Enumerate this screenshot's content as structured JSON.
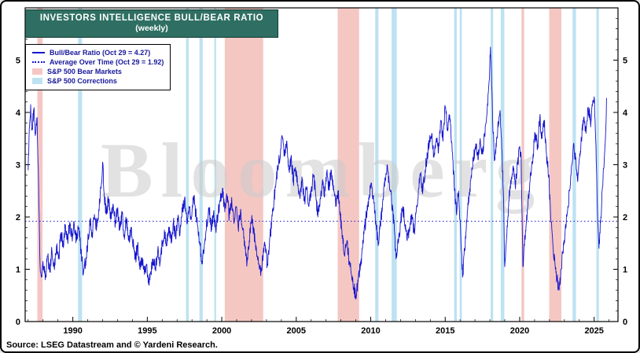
{
  "header": {
    "title": "INVESTORS INTELLIGENCE BULL/BEAR RATIO",
    "subtitle": "(weekly)"
  },
  "legend": {
    "items": [
      {
        "label": "Bull/Bear Ratio (Oct 29 = 4.27)",
        "swatch": "line"
      },
      {
        "label": "Average Over Time (Oct 29 = 1.92)",
        "swatch": "dotted-line"
      },
      {
        "label": "S&P 500 Bear Markets",
        "swatch": "bear-band"
      },
      {
        "label": "S&P 500 Corrections",
        "swatch": "correction-band"
      }
    ]
  },
  "watermark": "Bloomberg",
  "source": "Source: LSEG Datastream and © Yardeni Research.",
  "colors": {
    "line": "#1414cd",
    "bear": "#f4c7c3",
    "correction": "#bde2f2",
    "titlebg": "#2f6f63",
    "legend": "#18189c",
    "wm": "#cbcbcb"
  },
  "chart_data": {
    "type": "line",
    "title": "INVESTORS INTELLIGENCE BULL/BEAR RATIO (weekly)",
    "xlabel": "",
    "ylabel": "Bull/Bear Ratio",
    "x_range": [
      1986.8,
      2026.6
    ],
    "y_range": [
      0,
      6
    ],
    "x_ticks": [
      1990,
      1995,
      2000,
      2005,
      2010,
      2015,
      2020,
      2025
    ],
    "y_ticks": [
      0,
      1,
      2,
      3,
      4,
      5
    ],
    "grid": false,
    "legend_position": "top-left",
    "average_line": 1.92,
    "latest": {
      "as_of": "Oct 29",
      "ratio": 4.27,
      "average": 1.92
    },
    "texture_amplitude": 0.13,
    "bear_markets": [
      [
        1987.62,
        1987.97
      ],
      [
        2000.2,
        2002.78
      ],
      [
        2007.78,
        2009.22
      ],
      [
        2020.12,
        2020.3
      ],
      [
        2021.98,
        2022.8
      ]
    ],
    "corrections": [
      [
        1990.35,
        1990.62
      ],
      [
        1997.6,
        1997.78
      ],
      [
        1998.5,
        1998.72
      ],
      [
        1999.5,
        1999.62
      ],
      [
        2010.3,
        2010.52
      ],
      [
        2011.4,
        2011.75
      ],
      [
        2015.6,
        2015.78
      ],
      [
        2015.97,
        2016.12
      ],
      [
        2018.05,
        2018.22
      ],
      [
        2018.73,
        2018.97
      ],
      [
        2023.55,
        2023.78
      ],
      [
        2025.15,
        2025.32
      ]
    ],
    "series": [
      {
        "name": "Bull/Bear Ratio",
        "points": [
          [
            1987.0,
            2.9
          ],
          [
            1987.08,
            3.7
          ],
          [
            1987.17,
            4.15
          ],
          [
            1987.27,
            3.7
          ],
          [
            1987.38,
            4.05
          ],
          [
            1987.5,
            3.6
          ],
          [
            1987.6,
            3.9
          ],
          [
            1987.7,
            2.6
          ],
          [
            1987.8,
            1.1
          ],
          [
            1987.9,
            0.85
          ],
          [
            1988.0,
            1.15
          ],
          [
            1988.15,
            0.8
          ],
          [
            1988.3,
            1.25
          ],
          [
            1988.45,
            0.95
          ],
          [
            1988.6,
            1.35
          ],
          [
            1988.75,
            1.05
          ],
          [
            1988.9,
            1.45
          ],
          [
            1989.05,
            1.2
          ],
          [
            1989.2,
            1.7
          ],
          [
            1989.35,
            1.45
          ],
          [
            1989.5,
            1.85
          ],
          [
            1989.65,
            1.55
          ],
          [
            1989.8,
            1.9
          ],
          [
            1989.95,
            1.6
          ],
          [
            1990.1,
            1.85
          ],
          [
            1990.25,
            1.55
          ],
          [
            1990.4,
            1.8
          ],
          [
            1990.55,
            1.35
          ],
          [
            1990.7,
            0.9
          ],
          [
            1990.85,
            1.15
          ],
          [
            1991.0,
            1.5
          ],
          [
            1991.15,
            1.95
          ],
          [
            1991.3,
            1.65
          ],
          [
            1991.45,
            2.05
          ],
          [
            1991.6,
            1.8
          ],
          [
            1991.75,
            2.15
          ],
          [
            1991.9,
            2.55
          ],
          [
            1992.0,
            3.05
          ],
          [
            1992.1,
            2.45
          ],
          [
            1992.25,
            2.05
          ],
          [
            1992.4,
            2.35
          ],
          [
            1992.55,
            1.95
          ],
          [
            1992.7,
            2.25
          ],
          [
            1992.85,
            1.85
          ],
          [
            1993.0,
            2.15
          ],
          [
            1993.15,
            1.75
          ],
          [
            1993.3,
            2.05
          ],
          [
            1993.45,
            1.65
          ],
          [
            1993.6,
            1.95
          ],
          [
            1993.75,
            1.55
          ],
          [
            1993.9,
            1.8
          ],
          [
            1994.05,
            1.5
          ],
          [
            1994.2,
            1.2
          ],
          [
            1994.35,
            1.45
          ],
          [
            1994.5,
            1.0
          ],
          [
            1994.65,
            1.2
          ],
          [
            1994.8,
            0.9
          ],
          [
            1994.95,
            1.1
          ],
          [
            1995.1,
            0.7
          ],
          [
            1995.25,
            0.95
          ],
          [
            1995.4,
            1.2
          ],
          [
            1995.55,
            1.0
          ],
          [
            1995.7,
            1.35
          ],
          [
            1995.85,
            1.1
          ],
          [
            1996.0,
            1.5
          ],
          [
            1996.15,
            1.75
          ],
          [
            1996.3,
            1.45
          ],
          [
            1996.45,
            1.8
          ],
          [
            1996.6,
            1.5
          ],
          [
            1996.75,
            1.9
          ],
          [
            1996.9,
            1.6
          ],
          [
            1997.05,
            1.95
          ],
          [
            1997.2,
            1.7
          ],
          [
            1997.35,
            2.1
          ],
          [
            1997.5,
            2.35
          ],
          [
            1997.65,
            1.9
          ],
          [
            1997.8,
            2.2
          ],
          [
            1997.95,
            1.95
          ],
          [
            1998.1,
            2.4
          ],
          [
            1998.25,
            2.1
          ],
          [
            1998.4,
            1.8
          ],
          [
            1998.55,
            1.45
          ],
          [
            1998.7,
            1.1
          ],
          [
            1998.85,
            1.5
          ],
          [
            1999.0,
            1.9
          ],
          [
            1999.15,
            2.15
          ],
          [
            1999.3,
            1.8
          ],
          [
            1999.45,
            2.1
          ],
          [
            1999.6,
            1.75
          ],
          [
            1999.75,
            2.05
          ],
          [
            1999.9,
            2.3
          ],
          [
            2000.05,
            2.55
          ],
          [
            2000.2,
            2.1
          ],
          [
            2000.35,
            2.4
          ],
          [
            2000.5,
            2.0
          ],
          [
            2000.65,
            2.3
          ],
          [
            2000.8,
            1.95
          ],
          [
            2000.95,
            2.2
          ],
          [
            2001.1,
            1.8
          ],
          [
            2001.25,
            2.1
          ],
          [
            2001.4,
            1.75
          ],
          [
            2001.55,
            1.45
          ],
          [
            2001.7,
            1.15
          ],
          [
            2001.85,
            1.55
          ],
          [
            2002.0,
            1.95
          ],
          [
            2002.15,
            1.7
          ],
          [
            2002.3,
            1.45
          ],
          [
            2002.45,
            1.2
          ],
          [
            2002.6,
            0.95
          ],
          [
            2002.75,
            1.2
          ],
          [
            2002.9,
            1.45
          ],
          [
            2003.05,
            1.1
          ],
          [
            2003.2,
            1.5
          ],
          [
            2003.35,
            1.9
          ],
          [
            2003.5,
            2.3
          ],
          [
            2003.65,
            2.7
          ],
          [
            2003.8,
            3.0
          ],
          [
            2003.95,
            3.3
          ],
          [
            2004.05,
            3.55
          ],
          [
            2004.2,
            3.2
          ],
          [
            2004.35,
            3.45
          ],
          [
            2004.5,
            2.9
          ],
          [
            2004.65,
            3.15
          ],
          [
            2004.8,
            2.7
          ],
          [
            2004.95,
            2.95
          ],
          [
            2005.1,
            2.6
          ],
          [
            2005.25,
            2.35
          ],
          [
            2005.4,
            2.7
          ],
          [
            2005.55,
            2.3
          ],
          [
            2005.7,
            2.55
          ],
          [
            2005.85,
            2.2
          ],
          [
            2006.0,
            2.5
          ],
          [
            2006.15,
            2.8
          ],
          [
            2006.3,
            2.45
          ],
          [
            2006.45,
            2.0
          ],
          [
            2006.6,
            2.35
          ],
          [
            2006.75,
            2.65
          ],
          [
            2006.9,
            2.4
          ],
          [
            2007.05,
            2.85
          ],
          [
            2007.2,
            2.55
          ],
          [
            2007.35,
            2.9
          ],
          [
            2007.5,
            2.6
          ],
          [
            2007.65,
            2.2
          ],
          [
            2007.8,
            2.5
          ],
          [
            2007.95,
            2.1
          ],
          [
            2008.1,
            1.6
          ],
          [
            2008.25,
            1.25
          ],
          [
            2008.4,
            1.55
          ],
          [
            2008.55,
            1.15
          ],
          [
            2008.7,
            0.9
          ],
          [
            2008.85,
            0.65
          ],
          [
            2009.0,
            0.5
          ],
          [
            2009.15,
            0.75
          ],
          [
            2009.3,
            1.05
          ],
          [
            2009.45,
            1.4
          ],
          [
            2009.6,
            1.8
          ],
          [
            2009.75,
            2.1
          ],
          [
            2009.9,
            2.4
          ],
          [
            2010.05,
            2.65
          ],
          [
            2010.2,
            2.3
          ],
          [
            2010.35,
            1.9
          ],
          [
            2010.5,
            1.45
          ],
          [
            2010.65,
            1.85
          ],
          [
            2010.8,
            2.3
          ],
          [
            2010.95,
            2.75
          ],
          [
            2011.1,
            3.0
          ],
          [
            2011.25,
            2.65
          ],
          [
            2011.4,
            2.3
          ],
          [
            2011.55,
            1.9
          ],
          [
            2011.7,
            1.2
          ],
          [
            2011.85,
            1.5
          ],
          [
            2012.0,
            1.9
          ],
          [
            2012.15,
            2.2
          ],
          [
            2012.3,
            1.85
          ],
          [
            2012.45,
            1.55
          ],
          [
            2012.6,
            1.8
          ],
          [
            2012.75,
            2.05
          ],
          [
            2012.9,
            1.7
          ],
          [
            2013.05,
            2.1
          ],
          [
            2013.2,
            2.5
          ],
          [
            2013.35,
            2.8
          ],
          [
            2013.5,
            2.5
          ],
          [
            2013.65,
            2.9
          ],
          [
            2013.8,
            3.2
          ],
          [
            2013.95,
            3.45
          ],
          [
            2014.1,
            3.6
          ],
          [
            2014.25,
            3.15
          ],
          [
            2014.4,
            3.5
          ],
          [
            2014.55,
            3.25
          ],
          [
            2014.7,
            3.85
          ],
          [
            2014.85,
            3.45
          ],
          [
            2015.0,
            4.1
          ],
          [
            2015.15,
            3.7
          ],
          [
            2015.3,
            3.95
          ],
          [
            2015.45,
            3.4
          ],
          [
            2015.6,
            2.6
          ],
          [
            2015.75,
            2.1
          ],
          [
            2015.9,
            2.5
          ],
          [
            2016.05,
            1.6
          ],
          [
            2016.17,
            0.85
          ],
          [
            2016.3,
            1.35
          ],
          [
            2016.45,
            1.9
          ],
          [
            2016.6,
            2.4
          ],
          [
            2016.75,
            2.8
          ],
          [
            2016.9,
            3.1
          ],
          [
            2017.05,
            3.4
          ],
          [
            2017.2,
            3.1
          ],
          [
            2017.35,
            3.5
          ],
          [
            2017.5,
            3.2
          ],
          [
            2017.65,
            3.6
          ],
          [
            2017.8,
            3.95
          ],
          [
            2017.95,
            4.6
          ],
          [
            2018.04,
            5.25
          ],
          [
            2018.12,
            4.5
          ],
          [
            2018.22,
            3.6
          ],
          [
            2018.32,
            3.1
          ],
          [
            2018.45,
            3.5
          ],
          [
            2018.58,
            3.8
          ],
          [
            2018.7,
            3.95
          ],
          [
            2018.8,
            3.3
          ],
          [
            2018.9,
            2.5
          ],
          [
            2019.0,
            1.05
          ],
          [
            2019.12,
            1.6
          ],
          [
            2019.25,
            2.2
          ],
          [
            2019.4,
            2.7
          ],
          [
            2019.55,
            2.95
          ],
          [
            2019.7,
            2.6
          ],
          [
            2019.85,
            3.0
          ],
          [
            2020.0,
            3.35
          ],
          [
            2020.1,
            3.1
          ],
          [
            2020.22,
            1.05
          ],
          [
            2020.32,
            1.45
          ],
          [
            2020.45,
            1.9
          ],
          [
            2020.6,
            2.4
          ],
          [
            2020.75,
            2.8
          ],
          [
            2020.9,
            3.2
          ],
          [
            2021.05,
            3.6
          ],
          [
            2021.2,
            3.3
          ],
          [
            2021.35,
            3.9
          ],
          [
            2021.5,
            3.5
          ],
          [
            2021.65,
            3.85
          ],
          [
            2021.8,
            3.2
          ],
          [
            2021.95,
            2.8
          ],
          [
            2022.1,
            1.9
          ],
          [
            2022.25,
            1.4
          ],
          [
            2022.4,
            1.0
          ],
          [
            2022.55,
            0.75
          ],
          [
            2022.65,
            0.6
          ],
          [
            2022.78,
            1.0
          ],
          [
            2022.9,
            1.35
          ],
          [
            2023.05,
            1.7
          ],
          [
            2023.2,
            2.1
          ],
          [
            2023.35,
            2.5
          ],
          [
            2023.5,
            3.0
          ],
          [
            2023.62,
            3.4
          ],
          [
            2023.75,
            3.1
          ],
          [
            2023.88,
            2.7
          ],
          [
            2024.0,
            3.1
          ],
          [
            2024.15,
            3.5
          ],
          [
            2024.3,
            3.9
          ],
          [
            2024.45,
            3.6
          ],
          [
            2024.6,
            4.1
          ],
          [
            2024.75,
            3.8
          ],
          [
            2024.9,
            4.2
          ],
          [
            2025.0,
            4.3
          ],
          [
            2025.1,
            3.5
          ],
          [
            2025.22,
            2.1
          ],
          [
            2025.32,
            1.4
          ],
          [
            2025.45,
            2.0
          ],
          [
            2025.58,
            2.6
          ],
          [
            2025.7,
            3.2
          ],
          [
            2025.78,
            3.7
          ],
          [
            2025.83,
            4.27
          ]
        ]
      }
    ]
  }
}
